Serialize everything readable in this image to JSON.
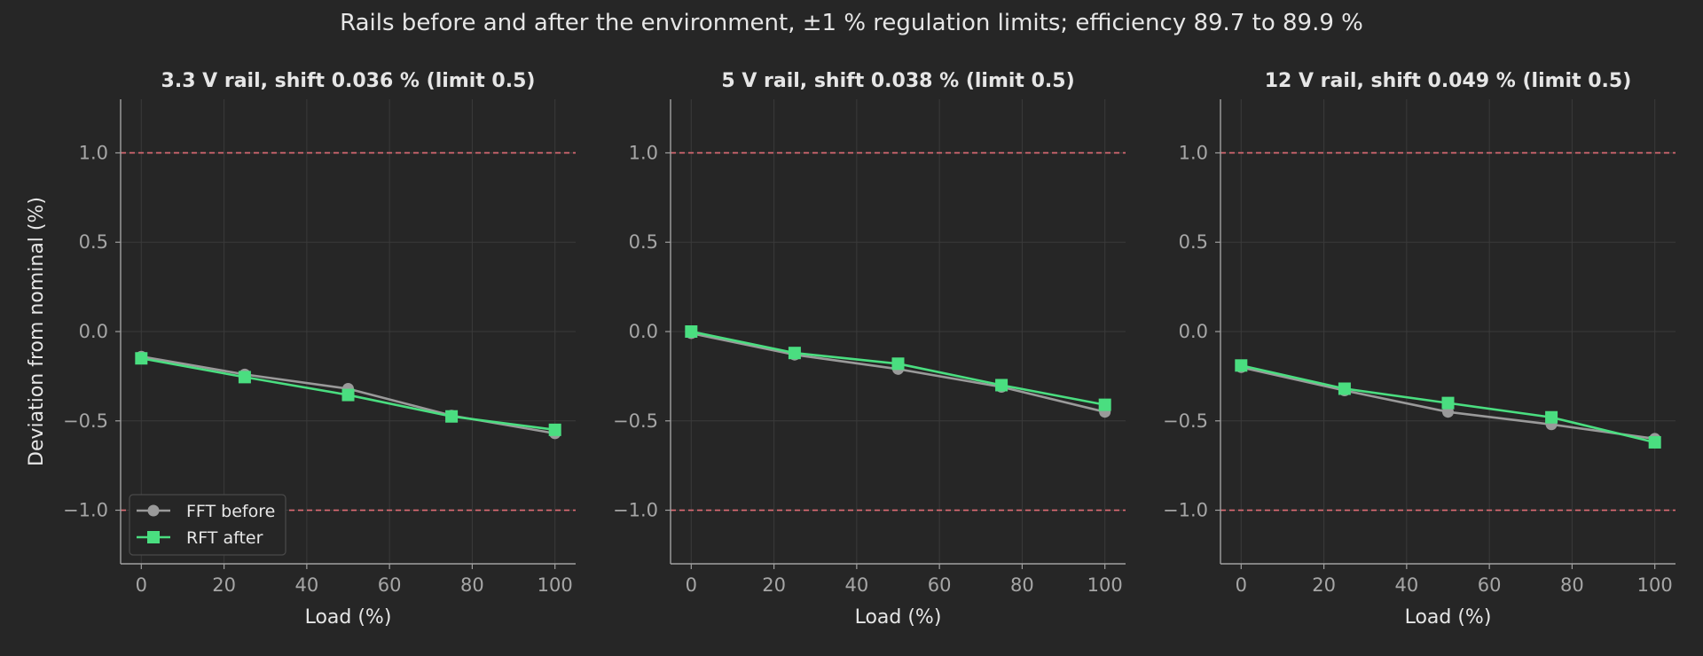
{
  "figure": {
    "suptitle": "Rails before and after the environment, ±1 % regulation limits; efficiency 89.7 to 89.9 %",
    "ylabel": "Deviation from nominal (%)",
    "colors": {
      "background": "#262626",
      "text": "#e6e6e6",
      "tick_text": "#a6a6a6",
      "axis": "#a0a0a0",
      "grid": "#3a3a3a",
      "limit": "#e06c75",
      "before": "#9a9a9a",
      "after": "#4ade80"
    }
  },
  "legend": {
    "placement": "lower-left of first panel",
    "items": [
      {
        "label": "FFT before",
        "marker": "circle"
      },
      {
        "label": "RFT after",
        "marker": "square"
      }
    ]
  },
  "chart_data": [
    {
      "type": "line",
      "title": "3.3 V rail, shift 0.036 % (limit 0.5)",
      "xlabel": "Load (%)",
      "ylabel": "Deviation from nominal (%)",
      "x": [
        0,
        25,
        50,
        75,
        100
      ],
      "xlim": [
        -5,
        105
      ],
      "ylim": [
        -1.3,
        1.3
      ],
      "xticks": [
        0,
        20,
        40,
        60,
        80,
        100
      ],
      "yticks": [
        -1.0,
        -0.5,
        0.0,
        0.5,
        1.0
      ],
      "ytick_labels": [
        "−1.0",
        "−0.5",
        "0.0",
        "0.5",
        "1.0"
      ],
      "limits": [
        1.0,
        -1.0
      ],
      "grid": true,
      "series": [
        {
          "name": "FFT before",
          "values": [
            -0.14,
            -0.24,
            -0.32,
            -0.47,
            -0.57
          ]
        },
        {
          "name": "RFT after",
          "values": [
            -0.15,
            -0.255,
            -0.355,
            -0.475,
            -0.55
          ]
        }
      ]
    },
    {
      "type": "line",
      "title": "5 V rail, shift 0.038 % (limit 0.5)",
      "xlabel": "Load (%)",
      "ylabel": "",
      "x": [
        0,
        25,
        50,
        75,
        100
      ],
      "xlim": [
        -5,
        105
      ],
      "ylim": [
        -1.3,
        1.3
      ],
      "xticks": [
        0,
        20,
        40,
        60,
        80,
        100
      ],
      "yticks": [
        -1.0,
        -0.5,
        0.0,
        0.5,
        1.0
      ],
      "ytick_labels": [
        "−1.0",
        "−0.5",
        "0.0",
        "0.5",
        "1.0"
      ],
      "limits": [
        1.0,
        -1.0
      ],
      "grid": true,
      "series": [
        {
          "name": "FFT before",
          "values": [
            -0.01,
            -0.13,
            -0.21,
            -0.31,
            -0.45
          ]
        },
        {
          "name": "RFT after",
          "values": [
            0.0,
            -0.12,
            -0.18,
            -0.3,
            -0.41
          ]
        }
      ]
    },
    {
      "type": "line",
      "title": "12 V rail, shift 0.049 % (limit 0.5)",
      "xlabel": "Load (%)",
      "ylabel": "",
      "x": [
        0,
        25,
        50,
        75,
        100
      ],
      "xlim": [
        -5,
        105
      ],
      "ylim": [
        -1.3,
        1.3
      ],
      "xticks": [
        0,
        20,
        40,
        60,
        80,
        100
      ],
      "yticks": [
        -1.0,
        -0.5,
        0.0,
        0.5,
        1.0
      ],
      "ytick_labels": [
        "−1.0",
        "−0.5",
        "0.0",
        "0.5",
        "1.0"
      ],
      "limits": [
        1.0,
        -1.0
      ],
      "grid": true,
      "series": [
        {
          "name": "FFT before",
          "values": [
            -0.2,
            -0.33,
            -0.45,
            -0.52,
            -0.6
          ]
        },
        {
          "name": "RFT after",
          "values": [
            -0.19,
            -0.32,
            -0.4,
            -0.48,
            -0.62
          ]
        }
      ]
    }
  ]
}
